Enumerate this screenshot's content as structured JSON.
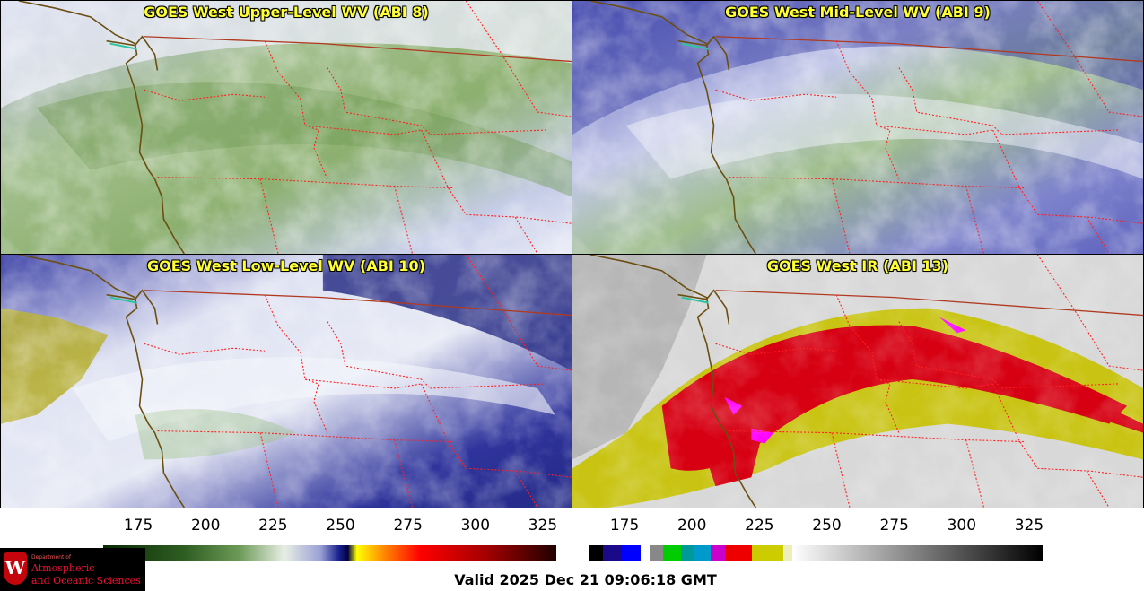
{
  "panels": [
    {
      "id": "upper",
      "title": "GOES West Upper-Level WV (ABI 8)"
    },
    {
      "id": "mid",
      "title": "GOES West Mid-Level WV (ABI 9)"
    },
    {
      "id": "low",
      "title": "GOES West Low-Level WV (ABI 10)"
    },
    {
      "id": "ir",
      "title": "GOES West IR (ABI 13)"
    }
  ],
  "colorbar_wv": {
    "ticks": [
      "175",
      "200",
      "225",
      "250",
      "275",
      "300",
      "325"
    ],
    "range": [
      162,
      330
    ]
  },
  "colorbar_ir": {
    "ticks": [
      "175",
      "200",
      "225",
      "250",
      "275",
      "300",
      "325"
    ],
    "range": [
      162,
      330
    ]
  },
  "logo": {
    "dept": "Department of",
    "line1": "Atmospheric",
    "line2": "and Oceanic Sciences",
    "crest": "W"
  },
  "valid_time": "Valid 2025 Dec 21 09:06:18 GMT",
  "colors": {
    "coast": "#6b4f12",
    "state_border": "#ff2020",
    "title": "#ffff33"
  }
}
